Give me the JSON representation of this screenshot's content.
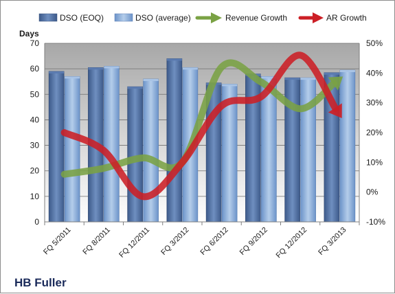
{
  "chart_data": {
    "type": "bar",
    "title": "HB Fuller",
    "ylabel": "Days",
    "ylim": [
      0,
      70
    ],
    "y_ticks": [
      0,
      10,
      20,
      30,
      40,
      50,
      60,
      70
    ],
    "y2lim": [
      -10,
      50
    ],
    "y2_ticks": [
      "-10%",
      "0%",
      "10%",
      "20%",
      "30%",
      "40%",
      "50%"
    ],
    "categories": [
      "FQ 5/2011",
      "FQ 8/2011",
      "FQ 12/2011",
      "FQ 3/2012",
      "FQ 6/2012",
      "FQ 9/2012",
      "FQ 12/2012",
      "FQ 3/2013"
    ],
    "grid": true,
    "legend_position": "top",
    "series": [
      {
        "name": "DSO (EOQ)",
        "type": "bar",
        "axis": "left",
        "color": "#4a6a9e",
        "values": [
          59,
          60.5,
          53,
          64,
          54.5,
          58,
          56.5,
          58.5
        ]
      },
      {
        "name": "DSO (average)",
        "type": "bar",
        "axis": "left",
        "color": "#8fb0dc",
        "values": [
          57,
          61,
          56,
          60.5,
          54,
          57,
          56.5,
          59.5
        ]
      },
      {
        "name": "Revenue Growth",
        "type": "line",
        "axis": "right",
        "color": "#7aa244",
        "values": [
          6,
          8,
          11.5,
          10,
          42,
          37,
          28,
          38
        ]
      },
      {
        "name": "AR Growth",
        "type": "line",
        "axis": "right",
        "color": "#cc1f26",
        "values": [
          20,
          14,
          -1.5,
          10,
          29,
          32,
          46,
          26
        ]
      }
    ]
  }
}
